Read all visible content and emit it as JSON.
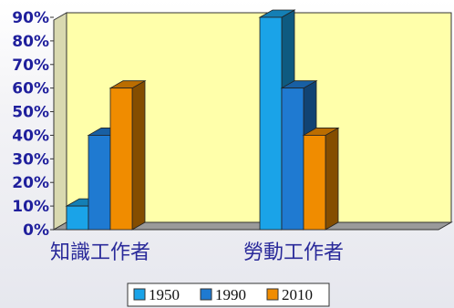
{
  "chart_data": {
    "type": "bar",
    "categories": [
      "知識工作者",
      "勞動工作者"
    ],
    "series": [
      {
        "name": "1950",
        "values": [
          10,
          90
        ],
        "color": "#1aa3e8"
      },
      {
        "name": "1990",
        "values": [
          40,
          60
        ],
        "color": "#1f7ad1"
      },
      {
        "name": "2010",
        "values": [
          60,
          40
        ],
        "color": "#f08c00"
      }
    ],
    "yticks": [
      "0%",
      "10%",
      "20%",
      "30%",
      "40%",
      "50%",
      "60%",
      "70%",
      "80%",
      "90%"
    ],
    "ylim": [
      0,
      90
    ],
    "legend_position": "bottom",
    "plot_background": "#ffffaa"
  }
}
